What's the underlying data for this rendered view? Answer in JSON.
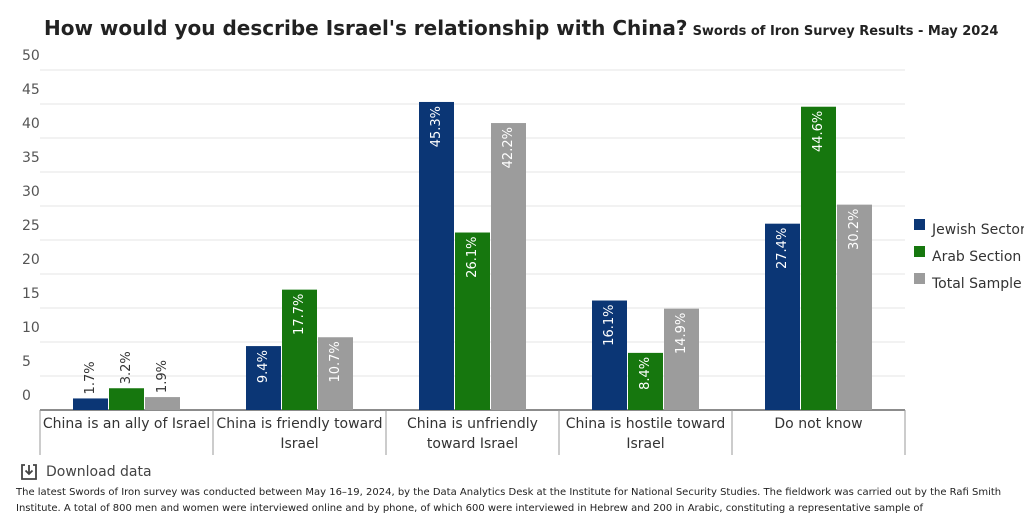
{
  "chart_data": {
    "type": "bar",
    "title": "How would you describe Israel's relationship with China?",
    "subtitle": "Swords of Iron Survey Results - May 2024",
    "categories": [
      "China is an ally of Israel",
      "China is friendly toward Israel",
      "China is unfriendly toward Israel",
      "China is hostile toward Israel",
      "Do not know"
    ],
    "series": [
      {
        "name": "Jewish Sector",
        "color": "#0b3675",
        "values": [
          1.7,
          9.4,
          45.3,
          16.1,
          27.4
        ],
        "value_labels": [
          "1.7%",
          "9.4%",
          "45.3%",
          "16.1%",
          "27.4%"
        ]
      },
      {
        "name": "Arab Section",
        "color": "#16770e",
        "values": [
          3.2,
          17.7,
          26.1,
          8.4,
          44.6
        ],
        "value_labels": [
          "3.2%",
          "17.7%",
          "26.1%",
          "8.4%",
          "44.6%"
        ]
      },
      {
        "name": "Total Sample",
        "color": "#9c9c9c",
        "values": [
          1.9,
          10.7,
          42.2,
          14.9,
          30.2
        ],
        "value_labels": [
          "1.9%",
          "10.7%",
          "42.2%",
          "14.9%",
          "30.2%"
        ]
      }
    ],
    "ylim": [
      0,
      50
    ],
    "yticks": [
      0,
      5,
      10,
      15,
      20,
      25,
      30,
      35,
      40,
      45,
      50
    ],
    "grid": true,
    "legend": "right"
  },
  "download_label": "Download data",
  "footer": "The latest Swords of Iron survey was conducted between May 16–19, 2024, by the Data Analytics Desk at the Institute for National Security Studies. The fieldwork was carried out by the Rafi Smith Institute. A total of 800 men and women were interviewed online and by phone, of which 600 were interviewed in Hebrew and 200 in Arabic, constituting a representative sample of"
}
